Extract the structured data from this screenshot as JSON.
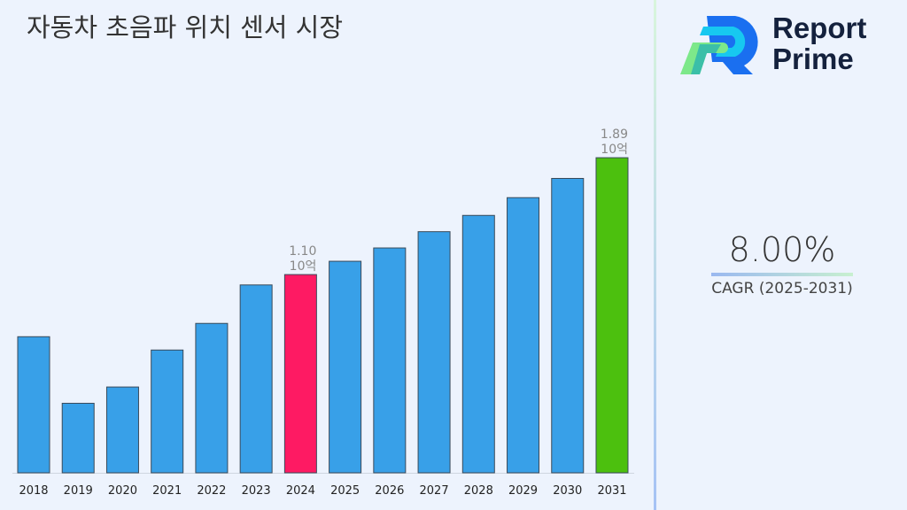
{
  "title": "자동차 초음파 위치 센서 시장",
  "logo": {
    "line1": "Report",
    "line2": "Prime"
  },
  "cagr": {
    "value": "8.00%",
    "label": "CAGR (2025-2031)"
  },
  "chart_data": {
    "type": "bar",
    "title": "자동차 초음파 위치 센서 시장",
    "categories": [
      "2018",
      "2019",
      "2020",
      "2021",
      "2022",
      "2023",
      "2024",
      "2025",
      "2026",
      "2027",
      "2028",
      "2029",
      "2030",
      "2031"
    ],
    "values": [
      0.68,
      0.23,
      0.34,
      0.59,
      0.77,
      1.03,
      1.1,
      1.19,
      1.28,
      1.39,
      1.5,
      1.62,
      1.75,
      1.89
    ],
    "unit": "10억",
    "data_labels": [
      {
        "category": "2024",
        "value": "1.10",
        "unit": "10억"
      },
      {
        "category": "2031",
        "value": "1.89",
        "unit": "10억"
      }
    ],
    "colors": {
      "default": "#38a0e8",
      "highlight_2024": "#fe1a63",
      "highlight_2031": "#4cc00e"
    },
    "grid": false,
    "legend": "none"
  }
}
